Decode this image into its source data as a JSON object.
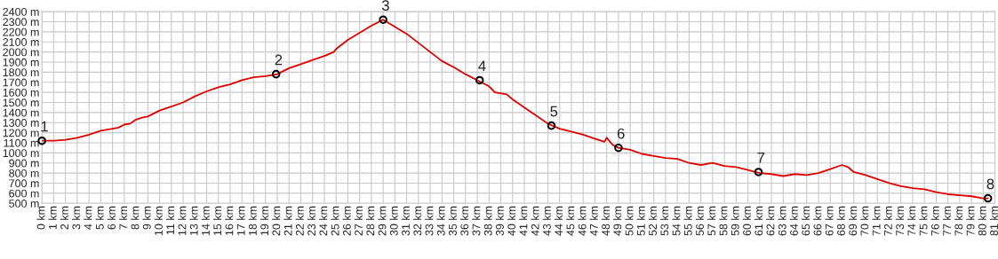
{
  "chart_data": {
    "type": "line",
    "grid": true,
    "legend": false,
    "xlim": [
      0,
      81
    ],
    "ylim": [
      500,
      2400
    ],
    "xticks": [
      {
        "value": 0,
        "label": "0 km"
      },
      {
        "value": 1,
        "label": "1 km"
      },
      {
        "value": 2,
        "label": "2 km"
      },
      {
        "value": 3,
        "label": "3 km"
      },
      {
        "value": 4,
        "label": "4 km"
      },
      {
        "value": 5,
        "label": "5 km"
      },
      {
        "value": 6,
        "label": "6 km"
      },
      {
        "value": 7,
        "label": "7 km"
      },
      {
        "value": 8,
        "label": "8 km"
      },
      {
        "value": 9,
        "label": "9 km"
      },
      {
        "value": 10,
        "label": "10 km"
      },
      {
        "value": 11,
        "label": "11 km"
      },
      {
        "value": 12,
        "label": "12 km"
      },
      {
        "value": 13,
        "label": "13 km"
      },
      {
        "value": 14,
        "label": "14 km"
      },
      {
        "value": 15,
        "label": "15 km"
      },
      {
        "value": 16,
        "label": "16 km"
      },
      {
        "value": 17,
        "label": "17 km"
      },
      {
        "value": 18,
        "label": "18 km"
      },
      {
        "value": 19,
        "label": "19 km"
      },
      {
        "value": 20,
        "label": "20 km"
      },
      {
        "value": 21,
        "label": "21 km"
      },
      {
        "value": 22,
        "label": "22 km"
      },
      {
        "value": 23,
        "label": "23 km"
      },
      {
        "value": 24,
        "label": "24 km"
      },
      {
        "value": 25,
        "label": "25 km"
      },
      {
        "value": 26,
        "label": "26 km"
      },
      {
        "value": 27,
        "label": "27 km"
      },
      {
        "value": 28,
        "label": "28 km"
      },
      {
        "value": 29,
        "label": "29 km"
      },
      {
        "value": 30,
        "label": "30 km"
      },
      {
        "value": 31,
        "label": "31 km"
      },
      {
        "value": 32,
        "label": "32 km"
      },
      {
        "value": 33,
        "label": "33 km"
      },
      {
        "value": 34,
        "label": "34 km"
      },
      {
        "value": 35,
        "label": "35 km"
      },
      {
        "value": 36,
        "label": "36 km"
      },
      {
        "value": 37,
        "label": "37 km"
      },
      {
        "value": 38,
        "label": "38 km"
      },
      {
        "value": 39,
        "label": "39 km"
      },
      {
        "value": 40,
        "label": "40 km"
      },
      {
        "value": 41,
        "label": "41 km"
      },
      {
        "value": 42,
        "label": "42 km"
      },
      {
        "value": 43,
        "label": "43 km"
      },
      {
        "value": 44,
        "label": "44 km"
      },
      {
        "value": 45,
        "label": "45 km"
      },
      {
        "value": 46,
        "label": "46 km"
      },
      {
        "value": 47,
        "label": "47 km"
      },
      {
        "value": 48,
        "label": "48 km"
      },
      {
        "value": 49,
        "label": "49 km"
      },
      {
        "value": 50,
        "label": "50 km"
      },
      {
        "value": 51,
        "label": "51 km"
      },
      {
        "value": 52,
        "label": "52 km"
      },
      {
        "value": 53,
        "label": "53 km"
      },
      {
        "value": 54,
        "label": "54 km"
      },
      {
        "value": 55,
        "label": "55 km"
      },
      {
        "value": 56,
        "label": "56 km"
      },
      {
        "value": 57,
        "label": "57 km"
      },
      {
        "value": 58,
        "label": "58 km"
      },
      {
        "value": 59,
        "label": "59 km"
      },
      {
        "value": 60,
        "label": "60 km"
      },
      {
        "value": 61,
        "label": "61 km"
      },
      {
        "value": 62,
        "label": "62 km"
      },
      {
        "value": 63,
        "label": "63 km"
      },
      {
        "value": 64,
        "label": "64 km"
      },
      {
        "value": 65,
        "label": "65 km"
      },
      {
        "value": 66,
        "label": "66 km"
      },
      {
        "value": 67,
        "label": "67 km"
      },
      {
        "value": 68,
        "label": "68 km"
      },
      {
        "value": 69,
        "label": "69 km"
      },
      {
        "value": 70,
        "label": "70 km"
      },
      {
        "value": 71,
        "label": "71 km"
      },
      {
        "value": 72,
        "label": "72 km"
      },
      {
        "value": 73,
        "label": "73 km"
      },
      {
        "value": 74,
        "label": "74 km"
      },
      {
        "value": 75,
        "label": "75 km"
      },
      {
        "value": 76,
        "label": "76 km"
      },
      {
        "value": 77,
        "label": "77 km"
      },
      {
        "value": 78,
        "label": "78 km"
      },
      {
        "value": 79,
        "label": "79 km"
      },
      {
        "value": 80,
        "label": "80 km"
      },
      {
        "value": 81,
        "label": "81 km"
      }
    ],
    "yticks": [
      {
        "value": 500,
        "label": "500 m"
      },
      {
        "value": 600,
        "label": "600 m"
      },
      {
        "value": 700,
        "label": "700 m"
      },
      {
        "value": 800,
        "label": "800 m"
      },
      {
        "value": 900,
        "label": "900 m"
      },
      {
        "value": 1000,
        "label": "1000 m"
      },
      {
        "value": 1100,
        "label": "1100 m"
      },
      {
        "value": 1200,
        "label": "1200 m"
      },
      {
        "value": 1300,
        "label": "1300 m"
      },
      {
        "value": 1400,
        "label": "1400 m"
      },
      {
        "value": 1500,
        "label": "1500 m"
      },
      {
        "value": 1600,
        "label": "1600 m"
      },
      {
        "value": 1700,
        "label": "1700 m"
      },
      {
        "value": 1800,
        "label": "1800 m"
      },
      {
        "value": 1900,
        "label": "1900 m"
      },
      {
        "value": 2000,
        "label": "2000 m"
      },
      {
        "value": 2100,
        "label": "2100 m"
      },
      {
        "value": 2200,
        "label": "2200 m"
      },
      {
        "value": 2300,
        "label": "2300 m"
      },
      {
        "value": 2400,
        "label": "2400 m"
      }
    ],
    "series": [
      {
        "color": "#dd0000",
        "marker": "none",
        "line_style": "solid",
        "x": [
          0,
          1,
          2,
          3,
          4,
          5,
          6,
          6.5,
          7,
          7.5,
          8,
          8.5,
          9,
          10,
          10.5,
          11,
          12,
          13,
          14,
          15,
          16,
          17,
          18,
          19,
          20,
          21,
          22,
          23,
          24,
          24.8,
          25,
          26,
          27,
          28,
          29,
          30,
          31,
          32,
          33,
          34,
          35,
          36,
          37,
          38,
          38.5,
          39.5,
          40,
          41,
          42,
          43,
          44,
          45,
          46,
          47,
          47.8,
          48,
          48.5,
          49,
          50,
          51,
          52,
          53,
          54,
          55,
          56,
          57,
          58,
          59,
          60,
          61,
          62,
          63,
          64,
          65,
          66,
          67,
          68,
          68.5,
          69,
          70,
          71,
          72,
          73,
          74,
          75,
          76,
          77,
          78,
          79,
          80,
          80.4
        ],
        "values": [
          1120,
          1120,
          1130,
          1150,
          1180,
          1220,
          1240,
          1250,
          1280,
          1290,
          1330,
          1350,
          1360,
          1420,
          1440,
          1460,
          1500,
          1560,
          1610,
          1650,
          1680,
          1720,
          1750,
          1760,
          1780,
          1840,
          1880,
          1920,
          1960,
          2000,
          2030,
          2120,
          2190,
          2260,
          2320,
          2250,
          2180,
          2090,
          2000,
          1910,
          1850,
          1780,
          1720,
          1660,
          1600,
          1580,
          1530,
          1450,
          1370,
          1290,
          1240,
          1210,
          1180,
          1140,
          1110,
          1150,
          1080,
          1050,
          1030,
          990,
          970,
          950,
          940,
          900,
          880,
          900,
          870,
          860,
          830,
          800,
          790,
          770,
          790,
          780,
          800,
          840,
          880,
          860,
          810,
          780,
          740,
          700,
          670,
          650,
          640,
          610,
          590,
          580,
          570,
          550,
          550
        ]
      },
      {
        "type": "scatter",
        "color": "#000000",
        "marker": "circle",
        "x": [
          0,
          19.9,
          29.0,
          37.2,
          43.3,
          49.0,
          60.9,
          80.4
        ],
        "values": [
          1120,
          1780,
          2320,
          1720,
          1270,
          1050,
          810,
          550
        ]
      }
    ],
    "annotations": [
      {
        "text": "1",
        "x": 0,
        "y": 1120
      },
      {
        "text": "2",
        "x": 19.9,
        "y": 1780
      },
      {
        "text": "3",
        "x": 29.0,
        "y": 2320
      },
      {
        "text": "4",
        "x": 37.2,
        "y": 1720
      },
      {
        "text": "5",
        "x": 43.3,
        "y": 1270
      },
      {
        "text": "6",
        "x": 49.0,
        "y": 1050
      },
      {
        "text": "7",
        "x": 60.9,
        "y": 810
      },
      {
        "text": "8",
        "x": 80.4,
        "y": 550
      }
    ]
  }
}
